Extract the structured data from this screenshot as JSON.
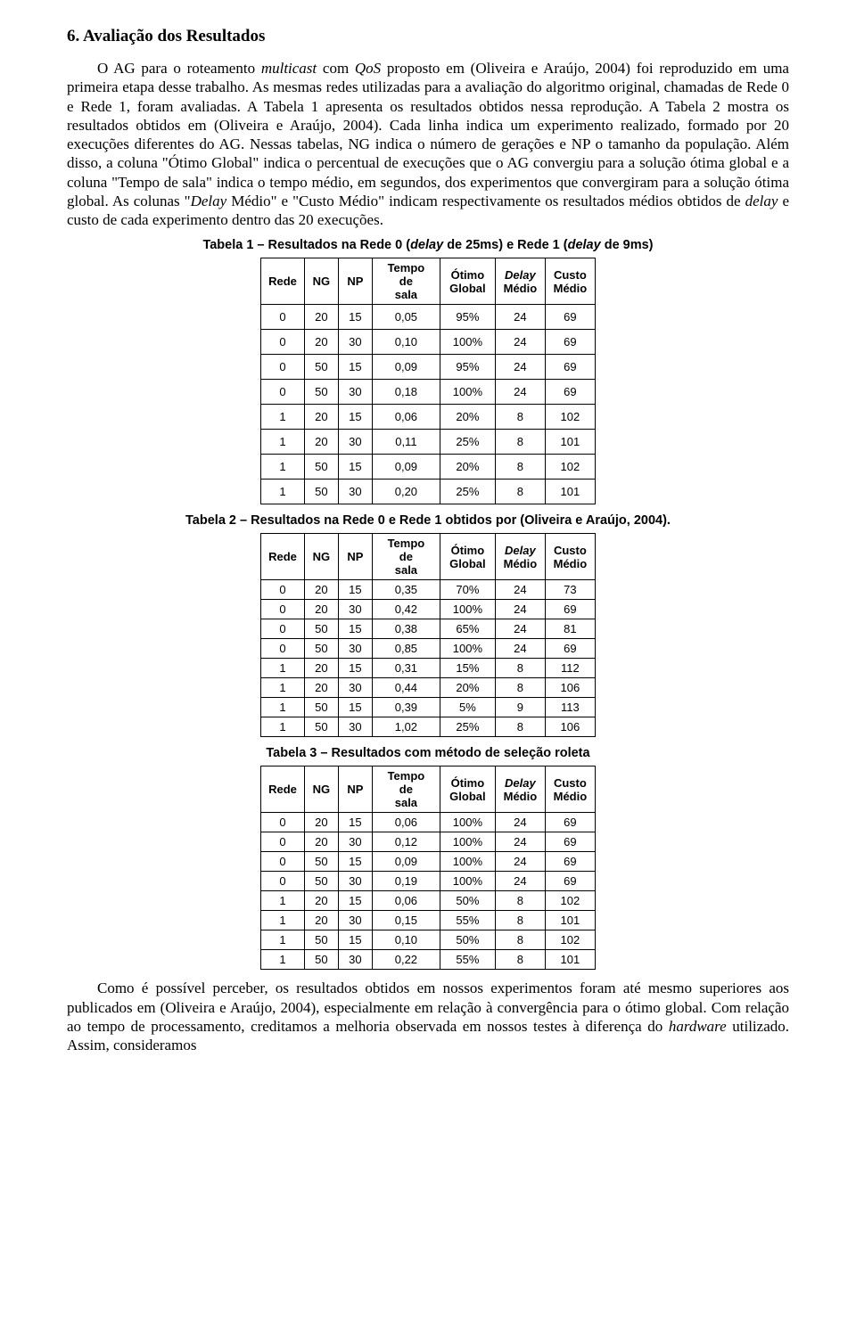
{
  "section": {
    "title": "6. Avaliação dos Resultados"
  },
  "paragraphs": {
    "p1_a": "O AG para o roteamento ",
    "p1_b": "multicast",
    "p1_c": " com ",
    "p1_d": "QoS",
    "p1_e": " proposto em (Oliveira e Araújo, 2004) foi reproduzido em uma primeira etapa desse trabalho. As mesmas redes utilizadas para a avaliação do algoritmo original, chamadas de Rede 0 e Rede 1, foram avaliadas. A Tabela 1 apresenta os resultados obtidos nessa reprodução. A Tabela 2 mostra os resultados obtidos em (Oliveira e Araújo, 2004). Cada linha indica um experimento realizado, formado por 20 execuções diferentes do AG. Nessas tabelas, NG indica o número de gerações e NP o tamanho da população. Além disso, a coluna \"Ótimo Global\" indica o percentual de execuções que o AG convergiu para a solução ótima global e a coluna \"Tempo de sala\" indica o tempo médio, em segundos, dos experimentos que convergiram para a solução ótima global. As colunas \"",
    "p1_f": "Delay",
    "p1_g": " Médio\" e \"Custo Médio\" indicam respectivamente os resultados médios obtidos de ",
    "p1_h": "delay",
    "p1_i": " e custo de cada experimento dentro das 20 execuções.",
    "p2_a": "Como é possível perceber, os resultados obtidos em nossos experimentos foram até mesmo superiores aos publicados em (Oliveira e Araújo, 2004), especialmente em relação à convergência para o ótimo global. Com relação ao tempo de processamento, creditamos a melhoria observada em nossos testes à diferença do ",
    "p2_b": "hardware",
    "p2_c": " utilizado. Assim, consideramos"
  },
  "tables": {
    "headers": {
      "rede": "Rede",
      "ng": "NG",
      "np": "NP",
      "tempo_l1": "Tempo de",
      "tempo_l2": "sala",
      "otimo_l1": "Ótimo",
      "otimo_l2": "Global",
      "delay_l1": "Delay",
      "delay_l2": "Médio",
      "custo_l1": "Custo",
      "custo_l2": "Médio"
    },
    "t1": {
      "caption_a": "Tabela 1 – Resultados na Rede 0 (",
      "caption_b": "delay",
      "caption_c": " de 25ms) e Rede 1 (",
      "caption_d": "delay",
      "caption_e": " de 9ms)",
      "rows": [
        {
          "rede": "0",
          "ng": "20",
          "np": "15",
          "tempo": "0,05",
          "otimo": "95%",
          "delay": "24",
          "custo": "69"
        },
        {
          "rede": "0",
          "ng": "20",
          "np": "30",
          "tempo": "0,10",
          "otimo": "100%",
          "delay": "24",
          "custo": "69"
        },
        {
          "rede": "0",
          "ng": "50",
          "np": "15",
          "tempo": "0,09",
          "otimo": "95%",
          "delay": "24",
          "custo": "69"
        },
        {
          "rede": "0",
          "ng": "50",
          "np": "30",
          "tempo": "0,18",
          "otimo": "100%",
          "delay": "24",
          "custo": "69"
        },
        {
          "rede": "1",
          "ng": "20",
          "np": "15",
          "tempo": "0,06",
          "otimo": "20%",
          "delay": "8",
          "custo": "102"
        },
        {
          "rede": "1",
          "ng": "20",
          "np": "30",
          "tempo": "0,11",
          "otimo": "25%",
          "delay": "8",
          "custo": "101"
        },
        {
          "rede": "1",
          "ng": "50",
          "np": "15",
          "tempo": "0,09",
          "otimo": "20%",
          "delay": "8",
          "custo": "102"
        },
        {
          "rede": "1",
          "ng": "50",
          "np": "30",
          "tempo": "0,20",
          "otimo": "25%",
          "delay": "8",
          "custo": "101"
        }
      ]
    },
    "t2": {
      "caption": "Tabela 2 – Resultados na Rede 0 e Rede 1 obtidos por (Oliveira e Araújo, 2004).",
      "rows": [
        {
          "rede": "0",
          "ng": "20",
          "np": "15",
          "tempo": "0,35",
          "otimo": "70%",
          "delay": "24",
          "custo": "73"
        },
        {
          "rede": "0",
          "ng": "20",
          "np": "30",
          "tempo": "0,42",
          "otimo": "100%",
          "delay": "24",
          "custo": "69"
        },
        {
          "rede": "0",
          "ng": "50",
          "np": "15",
          "tempo": "0,38",
          "otimo": "65%",
          "delay": "24",
          "custo": "81"
        },
        {
          "rede": "0",
          "ng": "50",
          "np": "30",
          "tempo": "0,85",
          "otimo": "100%",
          "delay": "24",
          "custo": "69"
        },
        {
          "rede": "1",
          "ng": "20",
          "np": "15",
          "tempo": "0,31",
          "otimo": "15%",
          "delay": "8",
          "custo": "112"
        },
        {
          "rede": "1",
          "ng": "20",
          "np": "30",
          "tempo": "0,44",
          "otimo": "20%",
          "delay": "8",
          "custo": "106"
        },
        {
          "rede": "1",
          "ng": "50",
          "np": "15",
          "tempo": "0,39",
          "otimo": "5%",
          "delay": "9",
          "custo": "113"
        },
        {
          "rede": "1",
          "ng": "50",
          "np": "30",
          "tempo": "1,02",
          "otimo": "25%",
          "delay": "8",
          "custo": "106"
        }
      ]
    },
    "t3": {
      "caption": "Tabela 3 – Resultados com método de seleção roleta",
      "rows": [
        {
          "rede": "0",
          "ng": "20",
          "np": "15",
          "tempo": "0,06",
          "otimo": "100%",
          "delay": "24",
          "custo": "69"
        },
        {
          "rede": "0",
          "ng": "20",
          "np": "30",
          "tempo": "0,12",
          "otimo": "100%",
          "delay": "24",
          "custo": "69"
        },
        {
          "rede": "0",
          "ng": "50",
          "np": "15",
          "tempo": "0,09",
          "otimo": "100%",
          "delay": "24",
          "custo": "69"
        },
        {
          "rede": "0",
          "ng": "50",
          "np": "30",
          "tempo": "0,19",
          "otimo": "100%",
          "delay": "24",
          "custo": "69"
        },
        {
          "rede": "1",
          "ng": "20",
          "np": "15",
          "tempo": "0,06",
          "otimo": "50%",
          "delay": "8",
          "custo": "102"
        },
        {
          "rede": "1",
          "ng": "20",
          "np": "30",
          "tempo": "0,15",
          "otimo": "55%",
          "delay": "8",
          "custo": "101"
        },
        {
          "rede": "1",
          "ng": "50",
          "np": "15",
          "tempo": "0,10",
          "otimo": "50%",
          "delay": "8",
          "custo": "102"
        },
        {
          "rede": "1",
          "ng": "50",
          "np": "30",
          "tempo": "0,22",
          "otimo": "55%",
          "delay": "8",
          "custo": "101"
        }
      ]
    }
  }
}
